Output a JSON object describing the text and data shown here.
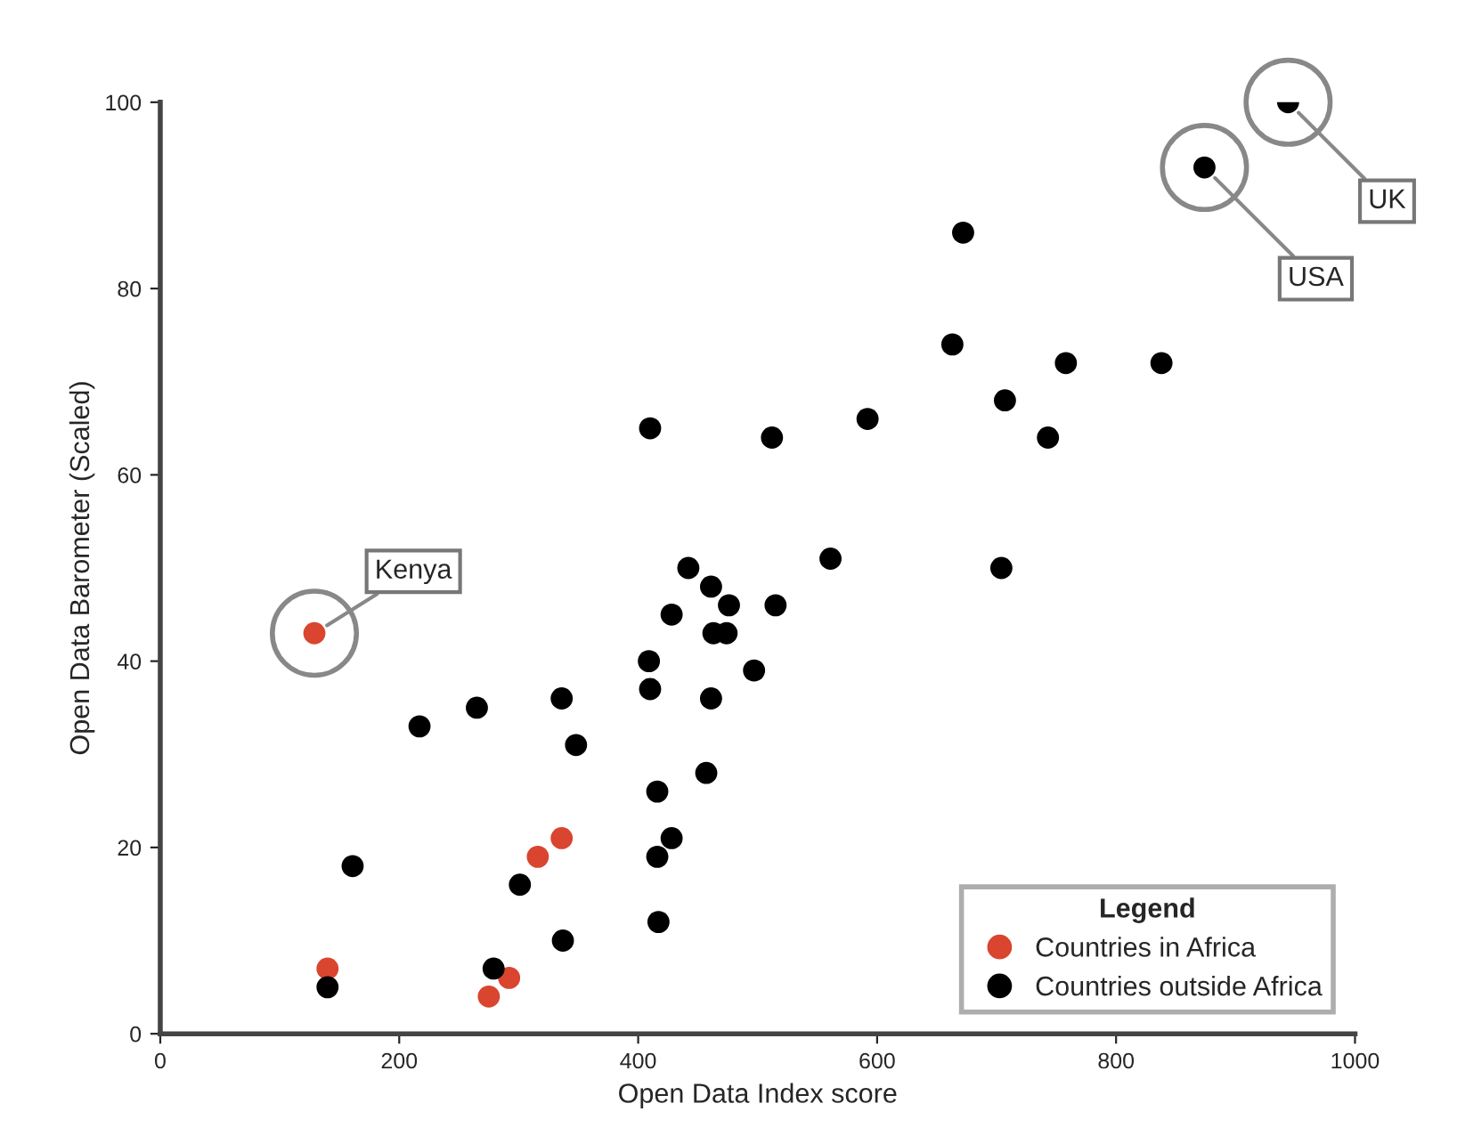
{
  "chart_data": {
    "type": "scatter",
    "xlabel": "Open Data Index score",
    "ylabel": "Open Data Barometer (Scaled)",
    "legend_title": "Legend",
    "xlim": [
      0,
      1000
    ],
    "xticks": [
      0,
      200,
      400,
      600,
      800,
      1000
    ],
    "ylim": [
      0,
      100
    ],
    "yticks": [
      0,
      20,
      40,
      60,
      80,
      100
    ],
    "grid": false,
    "legend": "bottom right",
    "marker": "circle",
    "series": [
      {
        "name": "Countries in Africa",
        "color": "#d9452f",
        "x": [
          129,
          336,
          316,
          292,
          275,
          140
        ],
        "values": [
          43,
          21,
          19,
          6,
          4,
          7
        ]
      },
      {
        "name": "Countries outside Africa",
        "color": "#000000",
        "x": [
          944,
          874,
          672,
          663,
          758,
          838,
          707,
          743,
          512,
          592,
          410,
          561,
          704,
          442,
          461,
          476,
          515,
          428,
          474,
          463,
          409,
          410,
          461,
          497,
          457,
          416,
          428,
          416,
          417,
          337,
          301,
          348,
          336,
          265,
          217,
          161,
          140,
          279
        ],
        "values": [
          100,
          93,
          86,
          74,
          72,
          72,
          68,
          64,
          64,
          66,
          65,
          51,
          50,
          50,
          48,
          46,
          46,
          45,
          43,
          43,
          40,
          37,
          36,
          39,
          28,
          26,
          21,
          19,
          12,
          10,
          16,
          31,
          36,
          35,
          33,
          18,
          5,
          7
        ]
      }
    ],
    "annotations": [
      {
        "text": "Kenya",
        "x": 129,
        "y": 43
      },
      {
        "text": "USA",
        "x": 874,
        "y": 93
      },
      {
        "text": "UK",
        "x": 944,
        "y": 100
      }
    ]
  }
}
